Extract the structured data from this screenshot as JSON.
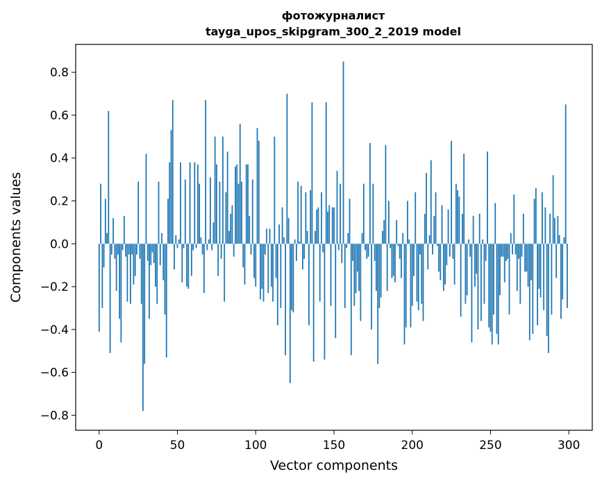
{
  "chart_data": {
    "type": "bar",
    "title": "фотожурналист",
    "subtitle": "tayga_upos_skipgram_300_2_2019 model",
    "xlabel": "Vector components",
    "ylabel": "Components values",
    "xlim": [
      -15,
      315
    ],
    "ylim": [
      -0.87,
      0.93
    ],
    "xticks": [
      0,
      50,
      100,
      150,
      200,
      250,
      300
    ],
    "yticks": [
      -0.8,
      -0.6,
      -0.4,
      -0.2,
      0.0,
      0.2,
      0.4,
      0.6,
      0.8
    ],
    "xtick_labels": [
      "0",
      "50",
      "100",
      "150",
      "200",
      "250",
      "300"
    ],
    "ytick_labels": [
      "−0.8",
      "−0.6",
      "−0.4",
      "−0.2",
      "0.0",
      "0.2",
      "0.4",
      "0.6",
      "0.8"
    ],
    "bar_color": "#1f77b4",
    "grid": false,
    "legend": false,
    "x": [
      0,
      1,
      2,
      3,
      4,
      5,
      6,
      7,
      8,
      9,
      10,
      11,
      12,
      13,
      14,
      15,
      16,
      17,
      18,
      19,
      20,
      21,
      22,
      23,
      24,
      25,
      26,
      27,
      28,
      29,
      30,
      31,
      32,
      33,
      34,
      35,
      36,
      37,
      38,
      39,
      40,
      41,
      42,
      43,
      44,
      45,
      46,
      47,
      48,
      49,
      50,
      51,
      52,
      53,
      54,
      55,
      56,
      57,
      58,
      59,
      60,
      61,
      62,
      63,
      64,
      65,
      66,
      67,
      68,
      69,
      70,
      71,
      72,
      73,
      74,
      75,
      76,
      77,
      78,
      79,
      80,
      81,
      82,
      83,
      84,
      85,
      86,
      87,
      88,
      89,
      90,
      91,
      92,
      93,
      94,
      95,
      96,
      97,
      98,
      99,
      100,
      101,
      102,
      103,
      104,
      105,
      106,
      107,
      108,
      109,
      110,
      111,
      112,
      113,
      114,
      115,
      116,
      117,
      118,
      119,
      120,
      121,
      122,
      123,
      124,
      125,
      126,
      127,
      128,
      129,
      130,
      131,
      132,
      133,
      134,
      135,
      136,
      137,
      138,
      139,
      140,
      141,
      142,
      143,
      144,
      145,
      146,
      147,
      148,
      149,
      150,
      151,
      152,
      153,
      154,
      155,
      156,
      157,
      158,
      159,
      160,
      161,
      162,
      163,
      164,
      165,
      166,
      167,
      168,
      169,
      170,
      171,
      172,
      173,
      174,
      175,
      176,
      177,
      178,
      179,
      180,
      181,
      182,
      183,
      184,
      185,
      186,
      187,
      188,
      189,
      190,
      191,
      192,
      193,
      194,
      195,
      196,
      197,
      198,
      199,
      200,
      201,
      202,
      203,
      204,
      205,
      206,
      207,
      208,
      209,
      210,
      211,
      212,
      213,
      214,
      215,
      216,
      217,
      218,
      219,
      220,
      221,
      222,
      223,
      224,
      225,
      226,
      227,
      228,
      229,
      230,
      231,
      232,
      233,
      234,
      235,
      236,
      237,
      238,
      239,
      240,
      241,
      242,
      243,
      244,
      245,
      246,
      247,
      248,
      249,
      250,
      251,
      252,
      253,
      254,
      255,
      256,
      257,
      258,
      259,
      260,
      261,
      262,
      263,
      264,
      265,
      266,
      267,
      268,
      269,
      270,
      271,
      272,
      273,
      274,
      275,
      276,
      277,
      278,
      279,
      280,
      281,
      282,
      283,
      284,
      285,
      286,
      287,
      288,
      289,
      290,
      291,
      292,
      293,
      294,
      295,
      296,
      297,
      298,
      299
    ],
    "values": [
      -0.41,
      0.28,
      -0.3,
      -0.11,
      0.21,
      0.05,
      0.62,
      -0.51,
      -0.05,
      0.12,
      -0.07,
      -0.22,
      -0.05,
      -0.35,
      -0.46,
      -0.03,
      0.13,
      -0.06,
      -0.27,
      -0.05,
      -0.28,
      -0.05,
      -0.19,
      -0.15,
      -0.05,
      0.29,
      -0.07,
      -0.28,
      -0.78,
      -0.56,
      0.42,
      -0.08,
      -0.35,
      -0.1,
      -0.04,
      -0.09,
      -0.2,
      -0.28,
      0.29,
      -0.1,
      0.05,
      -0.17,
      -0.33,
      -0.53,
      0.21,
      0.38,
      0.53,
      0.67,
      -0.12,
      0.04,
      -0.02,
      0.02,
      0.38,
      -0.18,
      -0.02,
      0.3,
      -0.2,
      -0.21,
      0.38,
      -0.15,
      -0.03,
      0.38,
      -0.02,
      0.37,
      0.28,
      0.03,
      -0.05,
      -0.23,
      0.67,
      -0.03,
      0.02,
      0.31,
      -0.03,
      0.1,
      0.5,
      0.37,
      -0.15,
      0.29,
      -0.07,
      0.5,
      -0.27,
      0.24,
      0.43,
      0.06,
      0.14,
      0.18,
      -0.06,
      0.36,
      0.37,
      0.28,
      0.56,
      0.29,
      -0.11,
      -0.19,
      0.37,
      0.37,
      0.13,
      -0.05,
      0.3,
      -0.16,
      -0.2,
      0.54,
      0.48,
      -0.26,
      -0.21,
      -0.27,
      -0.05,
      0.07,
      -0.23,
      0.07,
      -0.2,
      -0.27,
      0.5,
      -0.16,
      -0.38,
      0.09,
      -0.3,
      0.17,
      0.03,
      -0.52,
      0.7,
      0.12,
      -0.65,
      -0.31,
      -0.32,
      0.02,
      -0.08,
      0.29,
      0.01,
      0.27,
      -0.12,
      -0.07,
      0.24,
      0.06,
      -0.38,
      0.25,
      0.66,
      -0.55,
      0.06,
      0.16,
      0.17,
      -0.27,
      0.24,
      -0.04,
      -0.54,
      0.66,
      0.15,
      0.18,
      -0.29,
      0.17,
      0.17,
      -0.44,
      0.34,
      -0.03,
      0.28,
      -0.09,
      0.85,
      -0.3,
      -0.02,
      0.05,
      0.21,
      -0.52,
      -0.08,
      -0.29,
      -0.23,
      -0.13,
      -0.22,
      -0.36,
      0.05,
      0.28,
      -0.03,
      -0.07,
      -0.06,
      0.47,
      -0.4,
      0.28,
      -0.08,
      -0.22,
      -0.56,
      -0.3,
      -0.25,
      0.06,
      0.11,
      0.46,
      -0.22,
      0.2,
      -0.02,
      -0.16,
      -0.15,
      -0.18,
      0.11,
      -0.01,
      -0.07,
      -0.16,
      0.05,
      -0.47,
      -0.39,
      0.2,
      0.02,
      -0.39,
      -0.29,
      -0.15,
      0.24,
      -0.27,
      -0.31,
      -0.05,
      -0.28,
      -0.36,
      0.14,
      0.33,
      -0.12,
      0.04,
      0.39,
      -0.05,
      0.13,
      0.24,
      -0.01,
      -0.13,
      -0.17,
      0.18,
      -0.22,
      -0.19,
      -0.1,
      0.16,
      -0.06,
      0.48,
      -0.07,
      -0.19,
      0.28,
      0.25,
      0.22,
      -0.34,
      0.14,
      0.42,
      -0.28,
      -0.24,
      0.02,
      -0.06,
      -0.46,
      0.13,
      -0.2,
      -0.14,
      -0.4,
      0.14,
      -0.36,
      0.02,
      -0.28,
      -0.08,
      0.43,
      -0.39,
      -0.41,
      -0.47,
      -0.33,
      0.19,
      -0.42,
      -0.47,
      -0.24,
      -0.06,
      -0.06,
      -0.18,
      -0.08,
      -0.07,
      -0.33,
      0.05,
      -0.05,
      0.23,
      -0.05,
      -0.22,
      -0.07,
      -0.28,
      -0.06,
      0.14,
      -0.13,
      -0.13,
      -0.2,
      -0.45,
      -0.17,
      -0.42,
      0.21,
      0.26,
      -0.38,
      -0.21,
      -0.25,
      0.24,
      -0.31,
      0.17,
      -0.43,
      -0.51,
      0.14,
      -0.33,
      0.32,
      0.12,
      -0.16,
      0.13,
      0.04,
      -0.35,
      -0.26,
      0.03,
      0.65,
      -0.3
    ]
  }
}
